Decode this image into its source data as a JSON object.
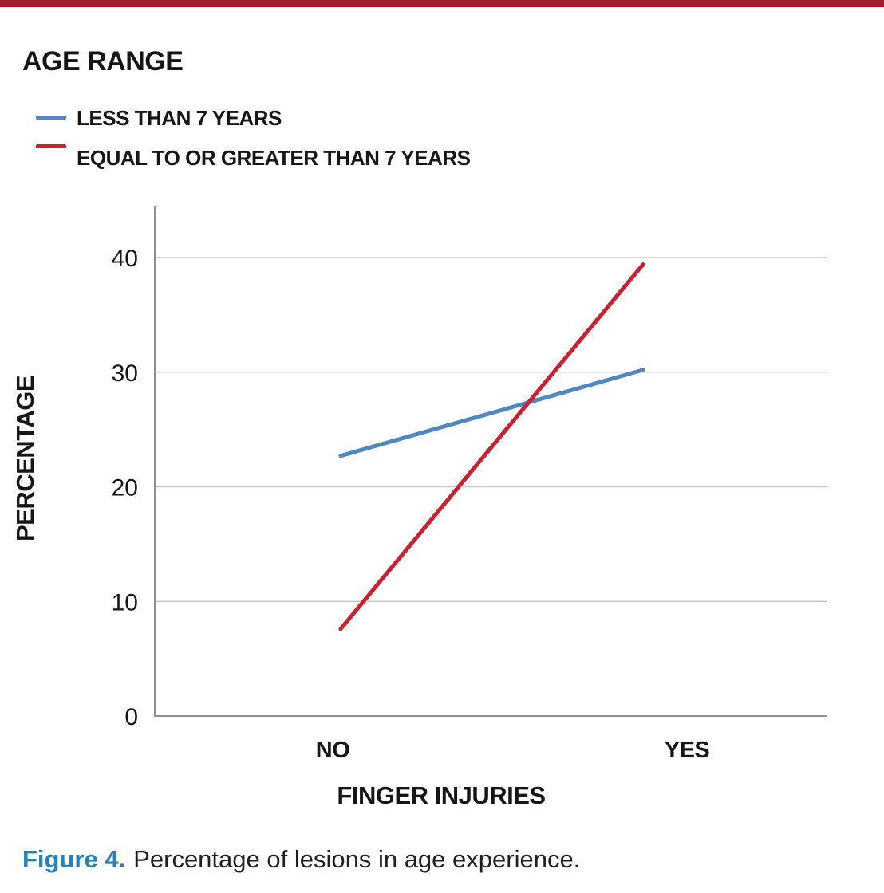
{
  "page": {
    "background": "#ffffff",
    "top_bar_color": "#a51c30"
  },
  "legend": {
    "title": "AGE RANGE",
    "items": [
      {
        "label": "LESS THAN 7 YEARS",
        "color": "#4e87c3"
      },
      {
        "label": "EQUAL TO OR GREATER THAN 7 YEARS",
        "color": "#cf1e2f"
      }
    ]
  },
  "chart_data": {
    "type": "line",
    "title": "",
    "categories": [
      "NO",
      "YES"
    ],
    "series": [
      {
        "name": "LESS THAN 7 YEARS",
        "values": [
          22.7,
          30.2
        ],
        "color": "#4e87c3"
      },
      {
        "name": "EQUAL TO OR GREATER THAN 7 YEARS",
        "values": [
          7.6,
          39.4
        ],
        "color": "#cf1e2f"
      }
    ],
    "xlabel": "FINGER INJURIES",
    "ylabel": "PERCENTAGE",
    "ylim": [
      0,
      44.5
    ],
    "yticks": [
      0,
      10,
      20,
      30,
      40
    ],
    "grid": "horizontal",
    "grid_color": "#c9c9c9",
    "axis_color": "#8d8f92",
    "legend_position": "top-left",
    "legend_title": "AGE RANGE"
  },
  "caption": {
    "label": "Figure 4.",
    "label_color": "#2484ba",
    "text": "Percentage of lesions in age experience."
  }
}
